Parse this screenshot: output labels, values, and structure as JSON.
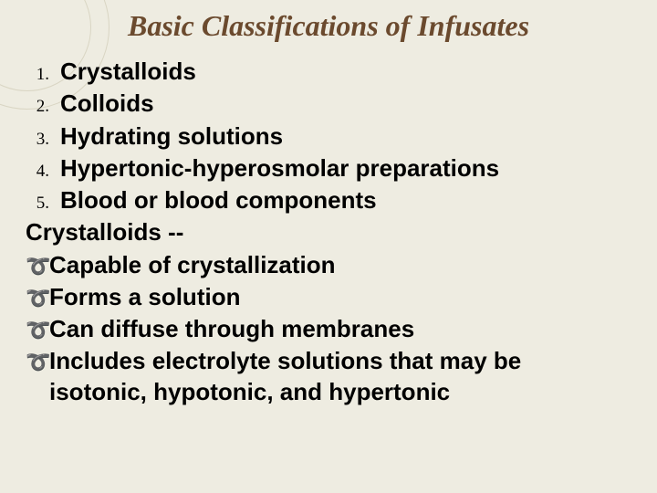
{
  "title": "Basic Classifications of Infusates",
  "list": {
    "n1": "1.",
    "t1": "Crystalloids",
    "n2": "2.",
    "t2": "Colloids",
    "n3": "3.",
    "t3": "Hydrating solutions",
    "n4": "4.",
    "t4": "Hypertonic-hyperosmolar preparations",
    "n5": "5.",
    "t5": "Blood or blood components"
  },
  "subheading": "Crystalloids --",
  "bullets": {
    "b1": "Capable of crystallization",
    "b2": "Forms a solution",
    "b3": "Can diffuse through membranes",
    "b4": "Includes electrolyte solutions that may be",
    "b4cont": "isotonic, hypotonic, and hypertonic"
  },
  "colors": {
    "background": "#eeece1",
    "title": "#6b4a2e",
    "text": "#000000",
    "ring": "#d9d5c3"
  },
  "typography": {
    "title_fontsize": 32,
    "title_style": "bold italic",
    "body_fontsize": 26,
    "number_fontsize": 19,
    "body_weight": "bold"
  }
}
